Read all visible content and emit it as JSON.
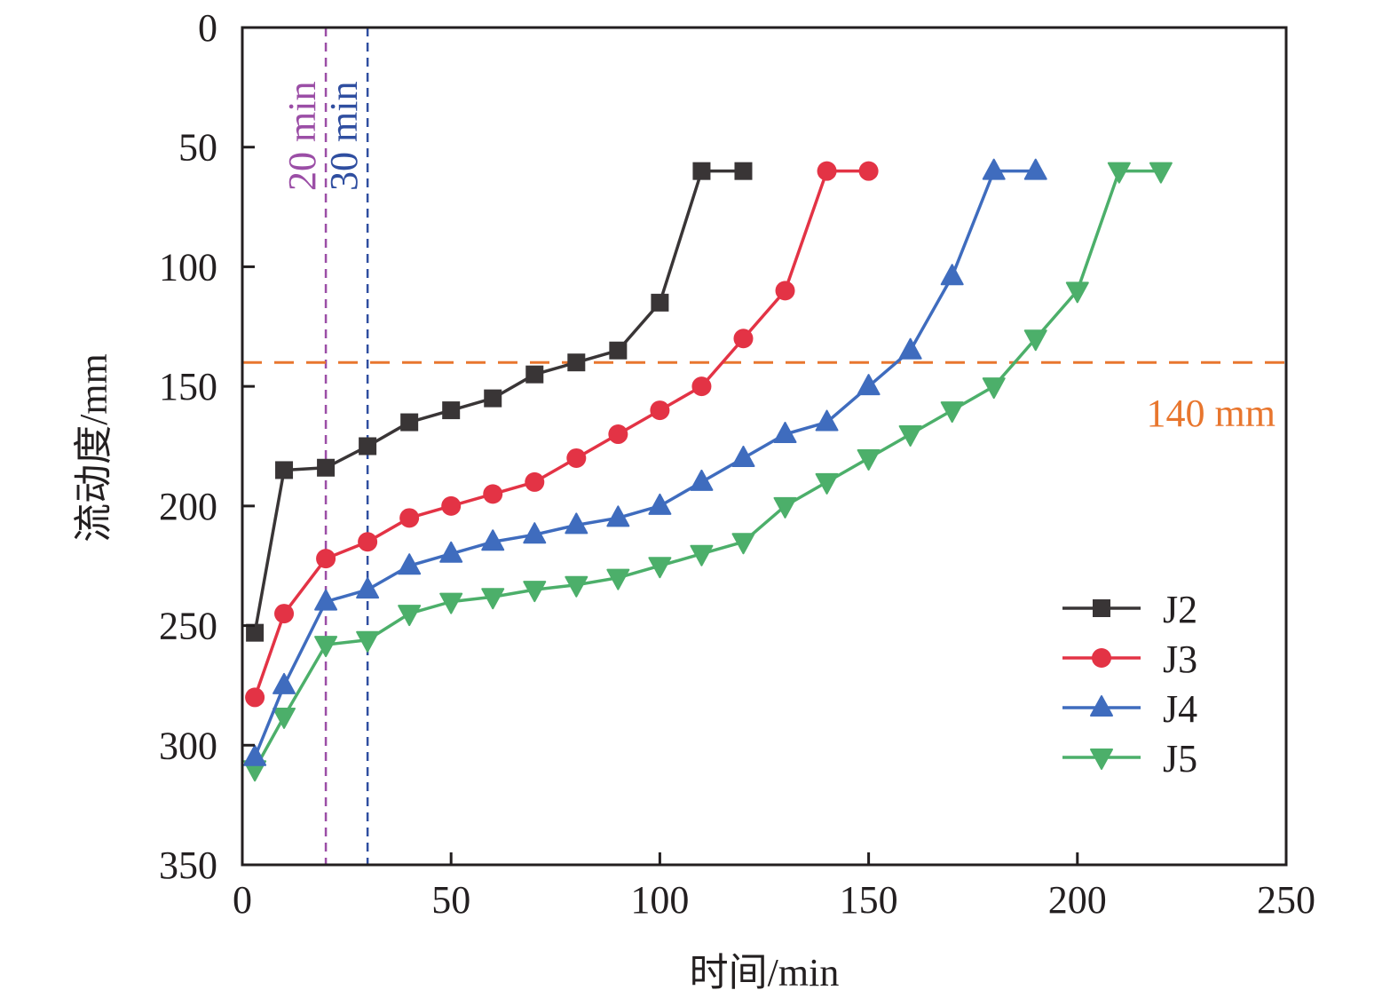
{
  "chart_data": {
    "type": "line",
    "title": "",
    "xlabel": "时间/min",
    "ylabel": "流动度/mm",
    "xlim": [
      0,
      250
    ],
    "ylim": [
      0,
      350
    ],
    "y_inverted": true,
    "grid": false,
    "x_ticks": [
      0,
      50,
      100,
      150,
      200,
      250
    ],
    "y_ticks": [
      0,
      50,
      100,
      150,
      200,
      250,
      300,
      350
    ],
    "x_tick_labels": [
      "0",
      "50",
      "100",
      "150",
      "200",
      "250"
    ],
    "y_tick_labels": [
      "0",
      "50",
      "100",
      "150",
      "200",
      "250",
      "300",
      "350"
    ],
    "legend_position": "bottom-right",
    "series": [
      {
        "name": "J2",
        "color": "#393536",
        "marker": "square",
        "x": [
          3,
          10,
          20,
          30,
          40,
          50,
          60,
          70,
          80,
          90,
          100,
          110,
          120
        ],
        "y": [
          253,
          185,
          184,
          175,
          165,
          160,
          155,
          145,
          140,
          135,
          115,
          60,
          60
        ]
      },
      {
        "name": "J3",
        "color": "#e33345",
        "marker": "circle",
        "x": [
          3,
          10,
          20,
          30,
          40,
          50,
          60,
          70,
          80,
          90,
          100,
          110,
          120,
          130,
          140,
          150
        ],
        "y": [
          280,
          245,
          222,
          215,
          205,
          200,
          195,
          190,
          180,
          170,
          160,
          150,
          130,
          110,
          60,
          60
        ]
      },
      {
        "name": "J4",
        "color": "#3f6cbe",
        "marker": "triangle-up",
        "x": [
          3,
          10,
          20,
          30,
          40,
          50,
          60,
          70,
          80,
          90,
          100,
          110,
          120,
          130,
          140,
          150,
          160,
          170,
          180,
          190
        ],
        "y": [
          305,
          275,
          240,
          235,
          225,
          220,
          215,
          212,
          208,
          205,
          200,
          190,
          180,
          170,
          165,
          150,
          135,
          104,
          60,
          60
        ]
      },
      {
        "name": "J5",
        "color": "#4caf6a",
        "marker": "triangle-down",
        "x": [
          3,
          10,
          20,
          30,
          40,
          50,
          60,
          70,
          80,
          90,
          100,
          110,
          120,
          130,
          140,
          150,
          160,
          170,
          180,
          190,
          200,
          210,
          220
        ],
        "y": [
          310,
          288,
          258,
          256,
          245,
          240,
          238,
          235,
          233,
          230,
          225,
          220,
          215,
          200,
          190,
          180,
          170,
          160,
          150,
          130,
          110,
          60,
          60
        ]
      }
    ],
    "reference_lines": [
      {
        "orientation": "vertical",
        "value": 20,
        "label": "20 min",
        "color": "#9b4ea6"
      },
      {
        "orientation": "vertical",
        "value": 30,
        "label": "30 min",
        "color": "#2f4ea0"
      },
      {
        "orientation": "horizontal",
        "value": 140,
        "label": "140 mm",
        "color": "#e8762e"
      }
    ]
  }
}
